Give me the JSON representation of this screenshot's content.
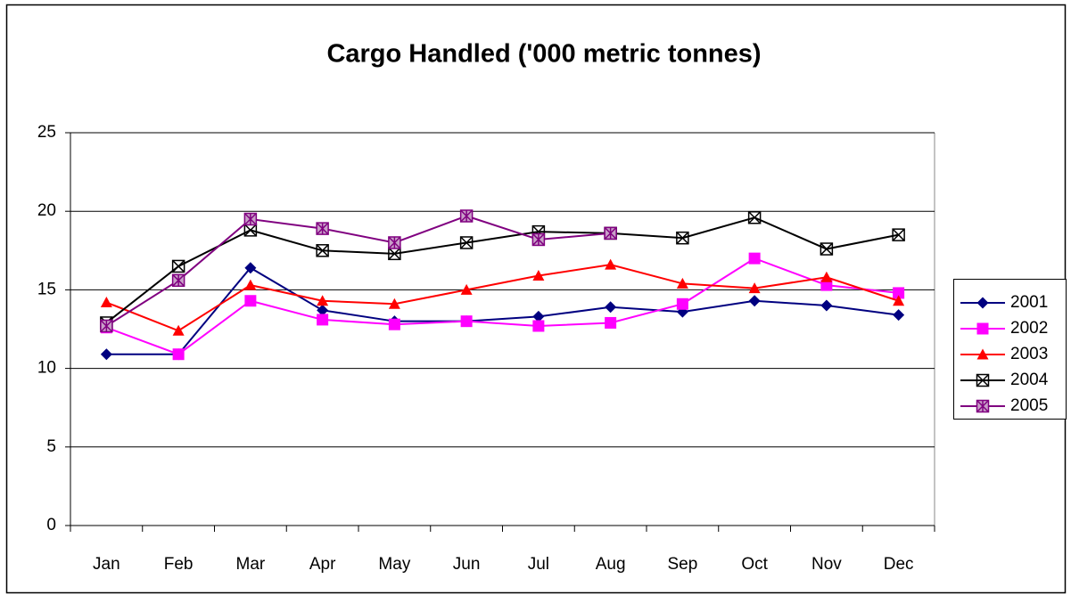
{
  "chart_data": {
    "type": "line",
    "title": "Cargo Handled ('000 metric tonnes)",
    "categories": [
      "Jan",
      "Feb",
      "Mar",
      "Apr",
      "May",
      "Jun",
      "Jul",
      "Aug",
      "Sep",
      "Oct",
      "Nov",
      "Dec"
    ],
    "series": [
      {
        "name": "2001",
        "color": "#000080",
        "marker": "diamond",
        "values": [
          10.9,
          10.9,
          16.4,
          13.7,
          13.0,
          13.0,
          13.3,
          13.9,
          13.6,
          14.3,
          14.0,
          13.4
        ]
      },
      {
        "name": "2002",
        "color": "#ff00ff",
        "marker": "square",
        "values": [
          12.6,
          10.9,
          14.3,
          13.1,
          12.8,
          13.0,
          12.7,
          12.9,
          14.1,
          17.0,
          15.3,
          14.8
        ]
      },
      {
        "name": "2003",
        "color": "#ff0000",
        "marker": "triangle",
        "values": [
          14.2,
          12.4,
          15.3,
          14.3,
          14.1,
          15.0,
          15.9,
          16.6,
          15.4,
          15.1,
          15.8,
          14.3
        ]
      },
      {
        "name": "2004",
        "color": "#000000",
        "marker": "square-x",
        "values": [
          12.9,
          16.5,
          18.8,
          17.5,
          17.3,
          18.0,
          18.7,
          18.6,
          18.3,
          19.6,
          17.6,
          18.5
        ]
      },
      {
        "name": "2005",
        "color": "#800080",
        "marker": "square-star",
        "values": [
          12.7,
          15.6,
          19.5,
          18.9,
          18.0,
          19.7,
          18.2,
          18.6,
          null,
          null,
          null,
          null
        ]
      }
    ],
    "ylim": [
      0,
      25
    ],
    "yticks": [
      0,
      5,
      10,
      15,
      20,
      25
    ],
    "grid": true,
    "legend": "right"
  }
}
